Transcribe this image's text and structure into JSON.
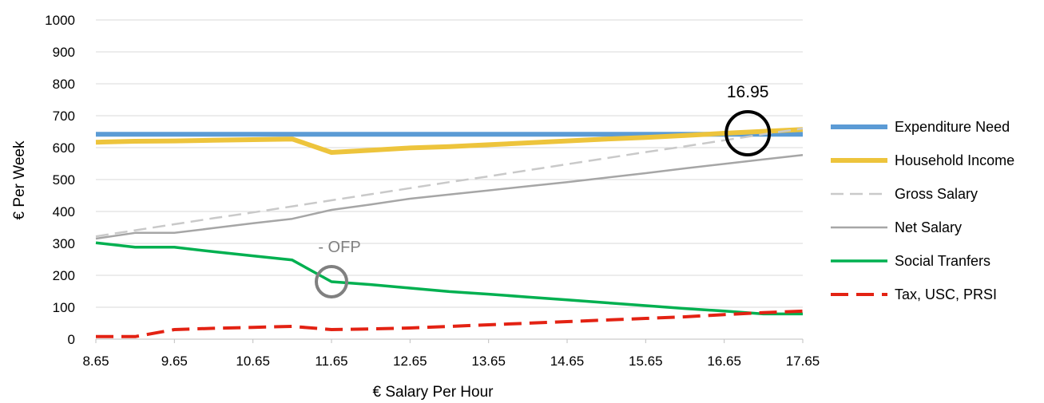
{
  "chart_data": {
    "type": "line",
    "xlabel": "€ Salary Per Hour",
    "ylabel": "€ Per Week",
    "x": [
      8.65,
      9.15,
      9.65,
      10.15,
      10.65,
      11.15,
      11.65,
      12.15,
      12.65,
      13.15,
      13.65,
      14.15,
      14.65,
      15.15,
      15.65,
      16.15,
      16.65,
      17.15,
      17.65
    ],
    "xticks": [
      "8.65",
      "9.65",
      "10.65",
      "11.65",
      "12.65",
      "13.65",
      "14.65",
      "15.65",
      "16.65",
      "17.65"
    ],
    "xlim": [
      8.65,
      17.65
    ],
    "yticks": [
      "0",
      "100",
      "200",
      "300",
      "400",
      "500",
      "600",
      "700",
      "800",
      "900",
      "1000"
    ],
    "ylim": [
      0,
      1000
    ],
    "grid": true,
    "legend_position": "right",
    "series": [
      {
        "name": "Expenditure Need",
        "color": "#5B9BD5",
        "dash": "solid",
        "width": 6,
        "values": [
          642,
          642,
          642,
          642,
          642,
          642,
          642,
          642,
          642,
          642,
          642,
          642,
          642,
          642,
          642,
          642,
          642,
          642,
          642
        ]
      },
      {
        "name": "Household Income",
        "color": "#EDC43C",
        "dash": "solid",
        "width": 6,
        "values": [
          617,
          620,
          621,
          623,
          625,
          627,
          585,
          592,
          599,
          603,
          609,
          615,
          621,
          627,
          632,
          638,
          645,
          651,
          657
        ]
      },
      {
        "name": "Gross Salary",
        "color": "#C9C9C9",
        "dash": "dashed",
        "width": 2.5,
        "values": [
          322,
          341,
          360,
          379,
          397,
          416,
          435,
          454,
          473,
          492,
          510,
          529,
          548,
          567,
          586,
          604,
          623,
          642,
          660
        ]
      },
      {
        "name": "Net Salary",
        "color": "#A6A6A6",
        "dash": "solid",
        "width": 2.5,
        "values": [
          315,
          333,
          333,
          348,
          363,
          377,
          405,
          422,
          440,
          453,
          466,
          479,
          492,
          506,
          520,
          535,
          549,
          563,
          577
        ]
      },
      {
        "name": "Social Tranfers",
        "color": "#00B050",
        "dash": "solid",
        "width": 3.5,
        "values": [
          302,
          288,
          288,
          274,
          261,
          248,
          180,
          171,
          160,
          149,
          141,
          132,
          123,
          114,
          105,
          96,
          88,
          79,
          79
        ]
      },
      {
        "name": "Tax, USC, PRSI",
        "color": "#E32213",
        "dash": "longdash",
        "width": 4,
        "values": [
          8,
          8,
          30,
          34,
          37,
          40,
          30,
          32,
          35,
          40,
          45,
          50,
          55,
          60,
          65,
          70,
          77,
          83,
          88
        ]
      }
    ],
    "annotations": [
      {
        "text": "16.95",
        "x": 16.95,
        "y": 645,
        "circle_color": "#000000"
      },
      {
        "text": "- OFP",
        "x": 11.65,
        "y": 180,
        "circle_color": "#808080"
      }
    ]
  }
}
